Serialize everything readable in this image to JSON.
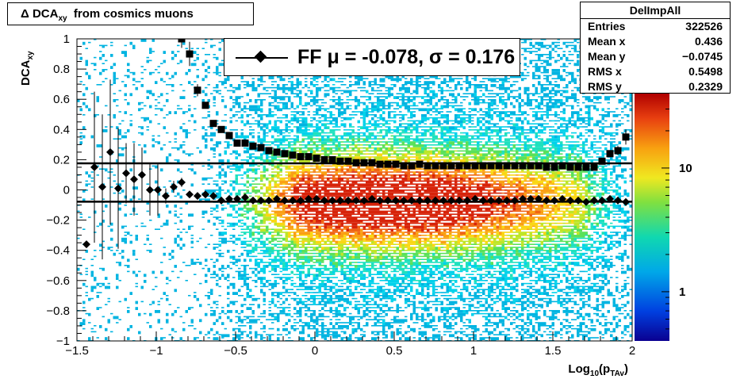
{
  "title": {
    "prefix": "Δ DCA",
    "subscript": "xy",
    "suffix": "from cosmics muons"
  },
  "stats_box": {
    "name": "DelImpAll",
    "rows": [
      {
        "label": "Entries",
        "value": "322526"
      },
      {
        "label": "Mean x",
        "value": "0.436"
      },
      {
        "label": "Mean y",
        "value": "−0.0745"
      },
      {
        "label": "RMS x",
        "value": "0.5498"
      },
      {
        "label": "RMS y",
        "value": "0.2329"
      }
    ]
  },
  "legend": {
    "text": "FF μ = -0.078, σ =   0.176"
  },
  "axes": {
    "x_title_main": "Log",
    "x_title_sub1": "10",
    "x_title_open": "(p",
    "x_title_sub2": "TAv",
    "x_title_close": ")",
    "y_title_main": "DCA",
    "y_title_sub": "xy",
    "x_ticks": [
      "−1.5",
      "−1",
      "−0.5",
      "0",
      "0.5",
      "1",
      "1.5",
      "2"
    ],
    "y_ticks": [
      "−1",
      "−0.8",
      "−0.6",
      "−0.4",
      "−0.2",
      "0",
      "0.2",
      "0.4",
      "0.6",
      "0.8",
      "1"
    ],
    "z_ticks": [
      "1",
      "10"
    ]
  },
  "colors": {
    "mean_markers": "#000000",
    "heatmap_peak": "#d01a00",
    "heatmap_low": "#00b8e0"
  },
  "chart_data": {
    "type": "heatmap",
    "xlim": [
      -1.5,
      2.0
    ],
    "ylim": [
      -1.0,
      1.0
    ],
    "z_scale": "log",
    "xlabel": "Log10(pTAv)",
    "ylabel": "DCAxy",
    "fit_lines": [
      {
        "y": -0.078
      },
      {
        "y": 0.176
      }
    ],
    "series": [
      {
        "marker": "diamond",
        "x": [
          -1.44,
          -1.39,
          -1.34,
          -1.29,
          -1.24,
          -1.19,
          -1.14,
          -1.09,
          -1.04,
          -0.99,
          -0.94,
          -0.89,
          -0.84,
          -0.79,
          -0.74,
          -0.69,
          -0.64,
          -0.59,
          -0.54,
          -0.49,
          -0.44,
          -0.39,
          -0.34,
          -0.29,
          -0.24,
          -0.19,
          -0.14,
          -0.09,
          -0.04,
          0.01,
          0.06,
          0.11,
          0.16,
          0.21,
          0.26,
          0.31,
          0.36,
          0.41,
          0.46,
          0.51,
          0.56,
          0.61,
          0.66,
          0.71,
          0.76,
          0.81,
          0.86,
          0.91,
          0.96,
          1.01,
          1.06,
          1.11,
          1.16,
          1.21,
          1.26,
          1.31,
          1.36,
          1.41,
          1.46,
          1.51,
          1.56,
          1.61,
          1.66,
          1.71,
          1.76,
          1.81,
          1.86,
          1.91,
          1.96
        ],
        "y": [
          -0.36,
          0.15,
          0.02,
          0.25,
          0.01,
          0.11,
          0.07,
          0.1,
          0.0,
          0.0,
          -0.04,
          0.02,
          0.05,
          -0.03,
          -0.04,
          -0.03,
          -0.04,
          -0.07,
          -0.06,
          -0.06,
          -0.05,
          -0.07,
          -0.07,
          -0.07,
          -0.06,
          -0.07,
          -0.07,
          -0.07,
          -0.06,
          -0.06,
          -0.07,
          -0.07,
          -0.07,
          -0.07,
          -0.07,
          -0.07,
          -0.06,
          -0.07,
          -0.07,
          -0.07,
          -0.07,
          -0.07,
          -0.07,
          -0.07,
          -0.07,
          -0.07,
          -0.07,
          -0.07,
          -0.07,
          -0.06,
          -0.07,
          -0.07,
          -0.07,
          -0.07,
          -0.07,
          -0.06,
          -0.06,
          -0.06,
          -0.07,
          -0.07,
          -0.06,
          -0.07,
          -0.07,
          -0.08,
          -0.07,
          -0.07,
          -0.06,
          -0.07,
          -0.08
        ],
        "yerr": [
          0.0,
          0.5,
          0.48,
          0.48,
          0.4,
          0.2,
          0.24,
          0.18,
          0.17,
          0.17,
          0.05,
          0.04,
          0.03,
          0.02,
          0.01,
          0.01,
          0.01,
          0.005,
          0.005,
          0.005,
          0.005,
          0.005,
          0.005,
          0.005,
          0.005,
          0.005,
          0.005,
          0.005,
          0.005,
          0.005,
          0.005,
          0.005,
          0.005,
          0.005,
          0.005,
          0.005,
          0.005,
          0.005,
          0.005,
          0.005,
          0.005,
          0.005,
          0.005,
          0.005,
          0.005,
          0.005,
          0.005,
          0.005,
          0.005,
          0.005,
          0.005,
          0.005,
          0.005,
          0.005,
          0.005,
          0.005,
          0.005,
          0.005,
          0.005,
          0.005,
          0.005,
          0.005,
          0.005,
          0.005,
          0.005,
          0.005,
          0.005,
          0.005,
          0.005
        ]
      },
      {
        "marker": "square",
        "x": [
          -0.84,
          -0.79,
          -0.74,
          -0.69,
          -0.64,
          -0.59,
          -0.54,
          -0.49,
          -0.44,
          -0.39,
          -0.34,
          -0.29,
          -0.24,
          -0.19,
          -0.14,
          -0.09,
          -0.04,
          0.01,
          0.06,
          0.11,
          0.16,
          0.21,
          0.26,
          0.31,
          0.36,
          0.41,
          0.46,
          0.51,
          0.56,
          0.61,
          0.66,
          0.71,
          0.76,
          0.81,
          0.86,
          0.91,
          0.96,
          1.01,
          1.06,
          1.11,
          1.16,
          1.21,
          1.26,
          1.31,
          1.36,
          1.41,
          1.46,
          1.51,
          1.56,
          1.61,
          1.66,
          1.71,
          1.76,
          1.81,
          1.86,
          1.91,
          1.96
        ],
        "y": [
          1.0,
          0.9,
          0.66,
          0.56,
          0.44,
          0.4,
          0.36,
          0.31,
          0.31,
          0.29,
          0.28,
          0.26,
          0.25,
          0.24,
          0.23,
          0.22,
          0.22,
          0.21,
          0.2,
          0.2,
          0.19,
          0.19,
          0.18,
          0.18,
          0.18,
          0.17,
          0.17,
          0.17,
          0.16,
          0.16,
          0.17,
          0.16,
          0.16,
          0.16,
          0.16,
          0.16,
          0.16,
          0.16,
          0.16,
          0.16,
          0.16,
          0.16,
          0.16,
          0.16,
          0.16,
          0.16,
          0.15,
          0.15,
          0.16,
          0.15,
          0.15,
          0.15,
          0.15,
          0.19,
          0.24,
          0.26,
          0.35
        ],
        "yerr": [
          0.06,
          0.08,
          0.04,
          0.02,
          0.01,
          0.005,
          0.005,
          0.005,
          0.005,
          0.005,
          0.005,
          0.005,
          0.005,
          0.005,
          0.005,
          0.005,
          0.005,
          0.005,
          0.005,
          0.005,
          0.005,
          0.005,
          0.005,
          0.005,
          0.005,
          0.005,
          0.005,
          0.005,
          0.005,
          0.005,
          0.005,
          0.005,
          0.005,
          0.005,
          0.005,
          0.005,
          0.005,
          0.005,
          0.005,
          0.005,
          0.005,
          0.005,
          0.005,
          0.005,
          0.005,
          0.005,
          0.005,
          0.005,
          0.005,
          0.005,
          0.005,
          0.005,
          0.005,
          0.01,
          0.02,
          0.03,
          0.05
        ]
      }
    ]
  }
}
